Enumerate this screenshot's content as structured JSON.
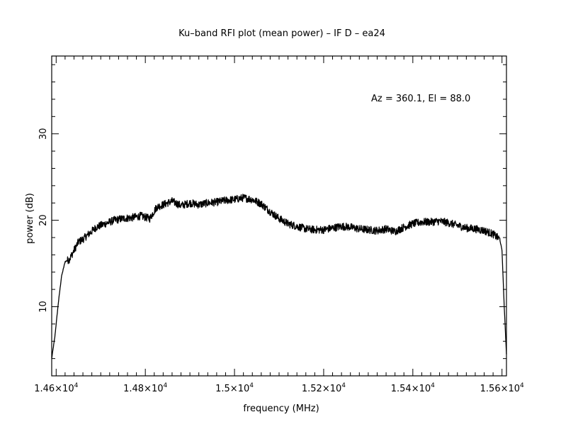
{
  "chart_data": {
    "type": "line",
    "title": "Ku–band RFI plot (mean power) – IF D – ea24",
    "xlabel": "frequency (MHz)",
    "ylabel": "power (dB)",
    "annotation": "Az = 360.1, El = 88.0",
    "xlim": [
      14590,
      15610
    ],
    "ylim": [
      2,
      39
    ],
    "x_ticks": [
      {
        "value": 14600,
        "mantissa": "1.46",
        "exp": "4"
      },
      {
        "value": 14800,
        "mantissa": "1.48",
        "exp": "4"
      },
      {
        "value": 15000,
        "mantissa": "1.5",
        "exp": "4"
      },
      {
        "value": 15200,
        "mantissa": "1.52",
        "exp": "4"
      },
      {
        "value": 15400,
        "mantissa": "1.54",
        "exp": "4"
      },
      {
        "value": 15600,
        "mantissa": "1.56",
        "exp": "4"
      }
    ],
    "y_ticks": [
      {
        "value": 10,
        "label": "10"
      },
      {
        "value": 20,
        "label": "20"
      },
      {
        "value": 30,
        "label": "30"
      }
    ],
    "grid": false,
    "series": [
      {
        "color": "#000000",
        "x": [
          14590,
          14597,
          14605,
          14612,
          14620,
          14630,
          14640,
          14650,
          14660,
          14675,
          14690,
          14710,
          14730,
          14750,
          14770,
          14790,
          14810,
          14825,
          14840,
          14860,
          14880,
          14900,
          14920,
          14940,
          14960,
          14980,
          15000,
          15020,
          15040,
          15060,
          15080,
          15100,
          15120,
          15140,
          15160,
          15180,
          15200,
          15220,
          15240,
          15260,
          15280,
          15300,
          15320,
          15340,
          15360,
          15380,
          15400,
          15420,
          15440,
          15460,
          15480,
          15500,
          15520,
          15540,
          15560,
          15580,
          15595,
          15600,
          15605,
          15610
        ],
        "y": [
          4.0,
          6.5,
          10.5,
          13.5,
          15.2,
          15.5,
          16.5,
          17.5,
          17.8,
          18.5,
          19.2,
          19.6,
          20.0,
          20.2,
          20.3,
          20.5,
          20.2,
          21.5,
          21.8,
          22.2,
          21.7,
          22.0,
          21.8,
          22.0,
          22.1,
          22.3,
          22.4,
          22.6,
          22.4,
          21.9,
          21.0,
          20.2,
          19.6,
          19.3,
          19.0,
          18.9,
          18.9,
          19.1,
          19.3,
          19.2,
          19.0,
          18.9,
          18.8,
          19.0,
          18.7,
          19.2,
          19.6,
          19.8,
          19.8,
          19.9,
          19.7,
          19.4,
          19.1,
          19.0,
          18.8,
          18.4,
          17.8,
          16.5,
          10.0,
          4.5
        ]
      }
    ]
  }
}
